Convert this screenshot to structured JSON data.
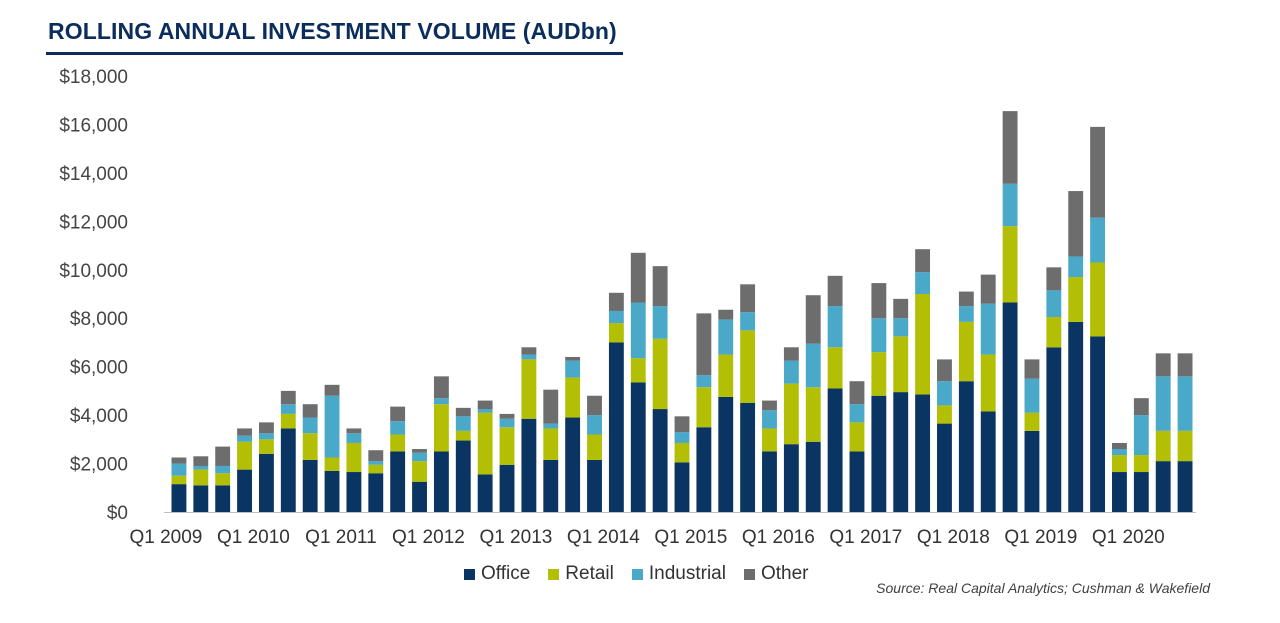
{
  "title": "ROLLING ANNUAL INVESTMENT VOLUME (AUDbn)",
  "source": "Source: Real Capital Analytics; Cushman & Wakefield",
  "colors": {
    "Office": "#0a3563",
    "Retail": "#b3bf05",
    "Industrial": "#4aa8c9",
    "Other": "#6d6d6d"
  },
  "chart_data": {
    "type": "bar",
    "stacked": true,
    "title": "ROLLING ANNUAL INVESTMENT VOLUME (AUDbn)",
    "ylim": [
      0,
      18000
    ],
    "yticks": [
      "$0",
      "$2,000",
      "$4,000",
      "$6,000",
      "$8,000",
      "$10,000",
      "$12,000",
      "$14,000",
      "$16,000",
      "$18,000"
    ],
    "xtick_labels": [
      "Q1 2009",
      "Q1 2010",
      "Q1 2011",
      "Q1 2012",
      "Q1 2013",
      "Q1 2014",
      "Q1 2015",
      "Q1 2016",
      "Q1 2017",
      "Q1 2018",
      "Q1 2019",
      "Q1 2020"
    ],
    "xtick_index": [
      0,
      4,
      8,
      12,
      16,
      20,
      24,
      28,
      32,
      36,
      40,
      44
    ],
    "categories": [
      "Q1 2009",
      "Q2 2009",
      "Q3 2009",
      "Q4 2009",
      "Q1 2010",
      "Q2 2010",
      "Q3 2010",
      "Q4 2010",
      "Q1 2011",
      "Q2 2011",
      "Q3 2011",
      "Q4 2011",
      "Q1 2012",
      "Q2 2012",
      "Q3 2012",
      "Q4 2012",
      "Q1 2013",
      "Q2 2013",
      "Q3 2013",
      "Q4 2013",
      "Q1 2014",
      "Q2 2014",
      "Q3 2014",
      "Q4 2014",
      "Q1 2015",
      "Q2 2015",
      "Q3 2015",
      "Q4 2015",
      "Q1 2016",
      "Q2 2016",
      "Q3 2016",
      "Q4 2016",
      "Q1 2017",
      "Q2 2017",
      "Q3 2017",
      "Q4 2017",
      "Q1 2018",
      "Q2 2018",
      "Q3 2018",
      "Q4 2018",
      "Q1 2019",
      "Q2 2019",
      "Q3 2019",
      "Q4 2019",
      "Q1 2020",
      "Q2 2020",
      "Q3 2020"
    ],
    "legend_position": "bottom",
    "series": [
      {
        "name": "Office",
        "values": [
          1150,
          1100,
          1100,
          1750,
          2400,
          3450,
          2150,
          1700,
          1650,
          1600,
          2500,
          1250,
          2500,
          2950,
          1550,
          1950,
          3850,
          2150,
          3900,
          2150,
          7000,
          5350,
          4250,
          2050,
          3500,
          4750,
          4500,
          2500,
          2800,
          2900,
          5100,
          2500,
          4800,
          4950,
          4850,
          3650,
          5400,
          4150,
          8650,
          3350,
          6800,
          7850,
          7250,
          1650,
          1650,
          2100,
          2100
        ]
      },
      {
        "name": "Retail",
        "values": [
          350,
          650,
          500,
          1150,
          600,
          600,
          1100,
          550,
          1200,
          350,
          700,
          850,
          1950,
          400,
          2550,
          1550,
          2450,
          1300,
          1650,
          1050,
          800,
          1000,
          2900,
          800,
          1650,
          1750,
          3000,
          950,
          2500,
          2250,
          1700,
          1200,
          1800,
          2300,
          4150,
          750,
          2450,
          2350,
          3150,
          750,
          1250,
          1850,
          3050,
          700,
          700,
          1250,
          1250
        ]
      },
      {
        "name": "Industrial",
        "values": [
          500,
          150,
          300,
          250,
          250,
          400,
          650,
          2550,
          400,
          150,
          550,
          350,
          250,
          600,
          150,
          350,
          200,
          200,
          700,
          800,
          500,
          2300,
          1350,
          450,
          500,
          1450,
          750,
          750,
          950,
          1800,
          1700,
          750,
          1400,
          750,
          900,
          1000,
          650,
          2100,
          1750,
          1400,
          1100,
          850,
          1850,
          250,
          1650,
          2250,
          2250
        ]
      },
      {
        "name": "Other",
        "values": [
          250,
          400,
          800,
          300,
          450,
          550,
          550,
          450,
          200,
          450,
          600,
          150,
          900,
          350,
          350,
          200,
          300,
          1400,
          150,
          800,
          750,
          2050,
          1650,
          650,
          2550,
          400,
          1150,
          400,
          550,
          2000,
          1250,
          950,
          1450,
          800,
          950,
          900,
          600,
          1200,
          3000,
          800,
          950,
          2700,
          3750,
          250,
          700,
          950,
          950
        ]
      }
    ]
  }
}
